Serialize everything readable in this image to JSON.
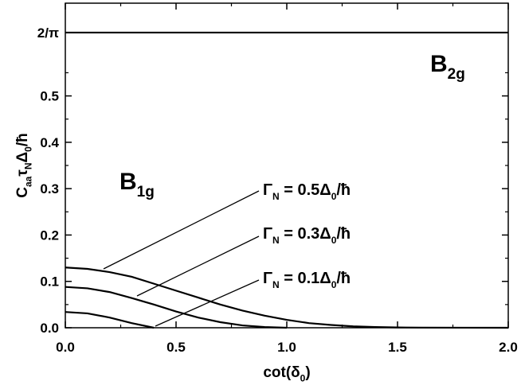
{
  "chart_data": {
    "type": "line",
    "xlabel": [
      {
        "text": "cot(δ"
      },
      {
        "text": "0",
        "sub": true
      },
      {
        "text": ")"
      }
    ],
    "ylabel": [
      {
        "text": "C"
      },
      {
        "text": "aa",
        "sub": true
      },
      {
        "text": "τ"
      },
      {
        "text": "N",
        "sub": true
      },
      {
        "text": "Δ"
      },
      {
        "text": "0",
        "sub": true
      },
      {
        "text": "/ħ"
      }
    ],
    "xlim": [
      0,
      2
    ],
    "ylim": [
      0,
      0.7
    ],
    "xticks": [
      {
        "value": 0,
        "label": "0.0"
      },
      {
        "value": 0.5,
        "label": "0.5"
      },
      {
        "value": 1,
        "label": "1.0"
      },
      {
        "value": 1.5,
        "label": "1.5"
      },
      {
        "value": 2,
        "label": "2.0"
      }
    ],
    "xminor": [
      0.25,
      0.75,
      1.25,
      1.75
    ],
    "yticks": [
      {
        "value": 0,
        "label": "0.0"
      },
      {
        "value": 0.1,
        "label": "0.1"
      },
      {
        "value": 0.2,
        "label": "0.2"
      },
      {
        "value": 0.3,
        "label": "0.3"
      },
      {
        "value": 0.4,
        "label": "0.4"
      },
      {
        "value": 0.5,
        "label": "0.5"
      },
      {
        "value": 0.6366,
        "label": "2/π"
      }
    ],
    "yminor": [
      0.05,
      0.15,
      0.25,
      0.35,
      0.45,
      0.55
    ],
    "series": [
      {
        "name": [
          {
            "text": "B"
          },
          {
            "text": "2g",
            "sub": true
          }
        ],
        "color": "#000000",
        "x": [
          0,
          2
        ],
        "values": [
          0.6366,
          0.6366
        ]
      },
      {
        "name": [
          {
            "text": "Γ"
          },
          {
            "text": "N",
            "sub": true
          },
          {
            "text": " = 0.5Δ"
          },
          {
            "text": "0",
            "sub": true
          },
          {
            "text": "/ħ"
          }
        ],
        "color": "#000000",
        "x": [
          0,
          0.1,
          0.2,
          0.3,
          0.4,
          0.5,
          0.6,
          0.7,
          0.8,
          0.9,
          1.0,
          1.1,
          1.2,
          1.3,
          1.4,
          1.5,
          1.6,
          1.8,
          2.0
        ],
        "values": [
          0.13,
          0.127,
          0.12,
          0.11,
          0.095,
          0.08,
          0.065,
          0.05,
          0.037,
          0.026,
          0.017,
          0.01,
          0.006,
          0.003,
          0.0015,
          0.0007,
          0.0003,
          0.0001,
          0
        ]
      },
      {
        "name": [
          {
            "text": "Γ"
          },
          {
            "text": "N",
            "sub": true
          },
          {
            "text": " = 0.3Δ"
          },
          {
            "text": "0",
            "sub": true
          },
          {
            "text": "/ħ"
          }
        ],
        "color": "#000000",
        "x": [
          0,
          0.1,
          0.2,
          0.3,
          0.4,
          0.5,
          0.6,
          0.7,
          0.8,
          0.9,
          1.0
        ],
        "values": [
          0.088,
          0.085,
          0.077,
          0.064,
          0.05,
          0.035,
          0.022,
          0.012,
          0.005,
          0.0015,
          0
        ]
      },
      {
        "name": [
          {
            "text": "Γ"
          },
          {
            "text": "N",
            "sub": true
          },
          {
            "text": " = 0.1Δ"
          },
          {
            "text": "0",
            "sub": true
          },
          {
            "text": "/ħ"
          }
        ],
        "color": "#000000",
        "x": [
          0,
          0.1,
          0.2,
          0.3,
          0.4
        ],
        "values": [
          0.034,
          0.031,
          0.022,
          0.01,
          0
        ]
      }
    ],
    "annotations": [
      {
        "text": [
          {
            "text": "B"
          },
          {
            "text": "1g",
            "sub": true
          }
        ]
      }
    ]
  }
}
